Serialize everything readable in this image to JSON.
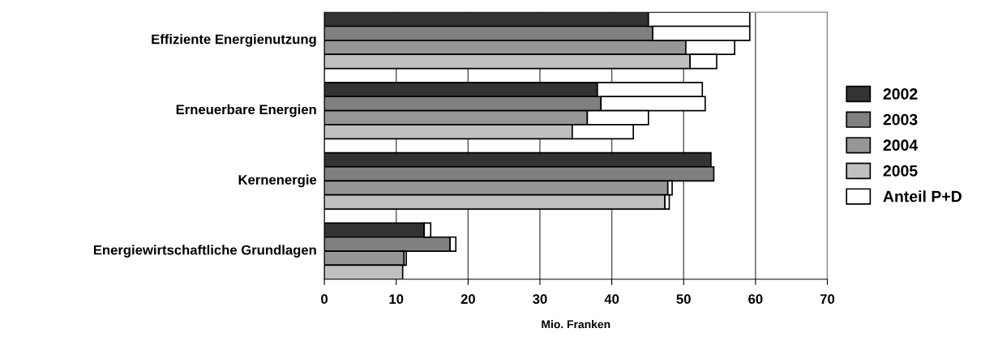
{
  "chart_data": {
    "type": "bar",
    "orientation": "horizontal",
    "stacked": true,
    "xlabel": "Mio. Franken",
    "categories": [
      null,
      null,
      null,
      null,
      null,
      null,
      null,
      null,
      null,
      null,
      null,
      null,
      null,
      null,
      null,
      null,
      null,
      null,
      null
    ],
    "annotations": [
      "Effiziente Energienutzung",
      "Erneuerbare Energien",
      "Kernenergie",
      "Energiewirtschaftliche Grundlagen"
    ],
    "series": [
      {
        "name": "2002",
        "color": "#333333",
        "values": [
          45.1,
          null,
          null,
          null,
          null,
          38.0,
          null,
          null,
          null,
          null,
          53.8,
          null,
          null,
          null,
          null,
          13.9,
          null,
          null,
          null
        ]
      },
      {
        "name": "2003",
        "color": "#808080",
        "values": [
          null,
          45.7,
          null,
          null,
          null,
          null,
          38.5,
          null,
          null,
          null,
          null,
          54.2,
          null,
          null,
          null,
          null,
          17.5,
          null,
          null
        ]
      },
      {
        "name": "2004",
        "color": "#969696",
        "values": [
          null,
          null,
          50.3,
          null,
          null,
          null,
          null,
          36.6,
          null,
          null,
          null,
          null,
          47.8,
          null,
          null,
          null,
          null,
          11.1,
          null
        ]
      },
      {
        "name": "2005",
        "color": "#c0c0c0",
        "values": [
          null,
          null,
          null,
          50.9,
          null,
          null,
          null,
          null,
          34.5,
          null,
          null,
          null,
          null,
          47.4,
          null,
          null,
          null,
          null,
          10.9
        ]
      },
      {
        "name": "Anteil P+D",
        "color": "#ffffff",
        "values": [
          14.1,
          13.5,
          6.8,
          3.7,
          null,
          14.6,
          14.5,
          8.5,
          8.5,
          null,
          null,
          null,
          0.6,
          0.6,
          null,
          0.9,
          0.8,
          0.3,
          null
        ]
      }
    ],
    "xlim": [
      0,
      70
    ],
    "xticks": [
      0,
      10,
      20,
      30,
      40,
      50,
      60,
      70
    ],
    "grid": "x",
    "legend": "right",
    "tick_labels": "x"
  }
}
